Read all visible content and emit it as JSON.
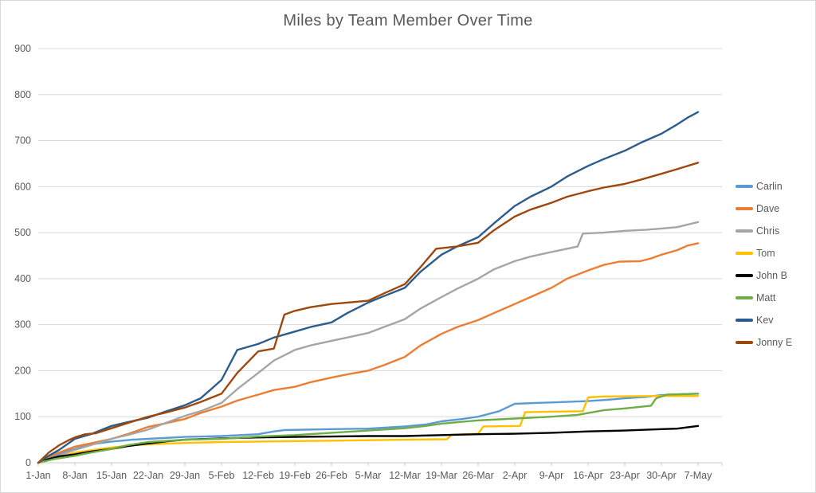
{
  "title": "Miles by Team Member Over Time",
  "chart_data": {
    "type": "line",
    "title": "Miles by Team Member Over Time",
    "xlabel": "",
    "ylabel": "",
    "x_unit": "days since 1-Jan, ticks weekly",
    "x_tick_labels": [
      "1-Jan",
      "8-Jan",
      "15-Jan",
      "22-Jan",
      "29-Jan",
      "5-Feb",
      "12-Feb",
      "19-Feb",
      "26-Feb",
      "5-Mar",
      "12-Mar",
      "19-Mar",
      "26-Mar",
      "2-Apr",
      "9-Apr",
      "16-Apr",
      "23-Apr",
      "30-Apr",
      "7-May"
    ],
    "x_tick_days": [
      0,
      7,
      14,
      21,
      28,
      35,
      42,
      49,
      56,
      63,
      70,
      77,
      84,
      91,
      98,
      105,
      112,
      119,
      126
    ],
    "ylim": [
      0,
      900
    ],
    "y_ticks": [
      0,
      100,
      200,
      300,
      400,
      500,
      600,
      700,
      800,
      900
    ],
    "grid": true,
    "legend_position": "right",
    "styles": {
      "grid_color": "#D9D9D9",
      "axis_color": "#C9C9C9",
      "label_color": "#595959",
      "title_color": "#595959"
    },
    "series": [
      {
        "name": "Carlin",
        "color": "#5B9BD5",
        "final_value": 150,
        "points": [
          [
            0,
            0
          ],
          [
            2,
            12
          ],
          [
            4,
            20
          ],
          [
            7,
            30
          ],
          [
            10,
            40
          ],
          [
            14,
            46
          ],
          [
            18,
            50
          ],
          [
            21,
            52
          ],
          [
            28,
            56
          ],
          [
            35,
            58
          ],
          [
            42,
            62
          ],
          [
            45,
            68
          ],
          [
            47,
            71
          ],
          [
            56,
            73
          ],
          [
            63,
            74
          ],
          [
            70,
            79
          ],
          [
            74,
            83
          ],
          [
            77,
            90
          ],
          [
            81,
            95
          ],
          [
            84,
            100
          ],
          [
            88,
            112
          ],
          [
            91,
            128
          ],
          [
            95,
            130
          ],
          [
            98,
            131
          ],
          [
            105,
            134
          ],
          [
            109,
            137
          ],
          [
            112,
            140
          ],
          [
            116,
            143
          ],
          [
            119,
            147
          ],
          [
            123,
            149
          ],
          [
            126,
            150
          ]
        ]
      },
      {
        "name": "Dave",
        "color": "#ED7D31",
        "final_value": 477,
        "points": [
          [
            0,
            0
          ],
          [
            3,
            18
          ],
          [
            7,
            35
          ],
          [
            10,
            42
          ],
          [
            14,
            52
          ],
          [
            17,
            62
          ],
          [
            21,
            78
          ],
          [
            24,
            85
          ],
          [
            28,
            95
          ],
          [
            31,
            108
          ],
          [
            35,
            122
          ],
          [
            38,
            135
          ],
          [
            42,
            148
          ],
          [
            45,
            158
          ],
          [
            49,
            165
          ],
          [
            52,
            175
          ],
          [
            56,
            185
          ],
          [
            59,
            192
          ],
          [
            63,
            200
          ],
          [
            66,
            212
          ],
          [
            70,
            230
          ],
          [
            73,
            255
          ],
          [
            77,
            280
          ],
          [
            80,
            295
          ],
          [
            84,
            310
          ],
          [
            87,
            325
          ],
          [
            91,
            345
          ],
          [
            94,
            360
          ],
          [
            98,
            380
          ],
          [
            101,
            400
          ],
          [
            105,
            418
          ],
          [
            108,
            430
          ],
          [
            111,
            437
          ],
          [
            115,
            438
          ],
          [
            117,
            444
          ],
          [
            119,
            452
          ],
          [
            122,
            462
          ],
          [
            124,
            472
          ],
          [
            126,
            477
          ]
        ]
      },
      {
        "name": "Chris",
        "color": "#A5A5A5",
        "final_value": 523,
        "points": [
          [
            0,
            0
          ],
          [
            3,
            12
          ],
          [
            7,
            28
          ],
          [
            10,
            38
          ],
          [
            14,
            52
          ],
          [
            17,
            60
          ],
          [
            21,
            72
          ],
          [
            24,
            85
          ],
          [
            28,
            102
          ],
          [
            31,
            112
          ],
          [
            35,
            130
          ],
          [
            38,
            160
          ],
          [
            42,
            195
          ],
          [
            45,
            222
          ],
          [
            49,
            245
          ],
          [
            52,
            255
          ],
          [
            56,
            265
          ],
          [
            59,
            272
          ],
          [
            63,
            282
          ],
          [
            66,
            295
          ],
          [
            70,
            312
          ],
          [
            73,
            335
          ],
          [
            77,
            360
          ],
          [
            80,
            378
          ],
          [
            84,
            400
          ],
          [
            87,
            420
          ],
          [
            91,
            438
          ],
          [
            94,
            448
          ],
          [
            98,
            458
          ],
          [
            101,
            465
          ],
          [
            103,
            470
          ],
          [
            104,
            498
          ],
          [
            108,
            500
          ],
          [
            112,
            504
          ],
          [
            116,
            506
          ],
          [
            119,
            509
          ],
          [
            122,
            512
          ],
          [
            126,
            523
          ]
        ]
      },
      {
        "name": "Tom",
        "color": "#FFC000",
        "final_value": 145,
        "points": [
          [
            0,
            0
          ],
          [
            3,
            10
          ],
          [
            7,
            22
          ],
          [
            10,
            27
          ],
          [
            14,
            33
          ],
          [
            18,
            38
          ],
          [
            21,
            40
          ],
          [
            28,
            43
          ],
          [
            35,
            45
          ],
          [
            42,
            46
          ],
          [
            49,
            47
          ],
          [
            56,
            48
          ],
          [
            63,
            49
          ],
          [
            70,
            50
          ],
          [
            78,
            51
          ],
          [
            79,
            61
          ],
          [
            84,
            63
          ],
          [
            85,
            79
          ],
          [
            92,
            80
          ],
          [
            93,
            110
          ],
          [
            104,
            112
          ],
          [
            105,
            142
          ],
          [
            108,
            144
          ],
          [
            119,
            145
          ],
          [
            126,
            145
          ]
        ]
      },
      {
        "name": "John B",
        "color": "#000000",
        "final_value": 80,
        "points": [
          [
            0,
            0
          ],
          [
            2,
            8
          ],
          [
            4,
            14
          ],
          [
            7,
            18
          ],
          [
            10,
            24
          ],
          [
            14,
            30
          ],
          [
            17,
            36
          ],
          [
            21,
            42
          ],
          [
            25,
            47
          ],
          [
            28,
            50
          ],
          [
            35,
            53
          ],
          [
            42,
            55
          ],
          [
            49,
            56
          ],
          [
            56,
            57
          ],
          [
            63,
            58
          ],
          [
            70,
            58
          ],
          [
            77,
            60
          ],
          [
            84,
            62
          ],
          [
            91,
            63
          ],
          [
            98,
            65
          ],
          [
            105,
            68
          ],
          [
            112,
            70
          ],
          [
            119,
            73
          ],
          [
            122,
            74
          ],
          [
            126,
            80
          ]
        ]
      },
      {
        "name": "Matt",
        "color": "#70AD47",
        "final_value": 150,
        "points": [
          [
            0,
            0
          ],
          [
            3,
            8
          ],
          [
            7,
            15
          ],
          [
            10,
            22
          ],
          [
            14,
            30
          ],
          [
            17,
            38
          ],
          [
            21,
            45
          ],
          [
            28,
            50
          ],
          [
            35,
            52
          ],
          [
            42,
            57
          ],
          [
            49,
            60
          ],
          [
            56,
            65
          ],
          [
            63,
            70
          ],
          [
            70,
            75
          ],
          [
            74,
            80
          ],
          [
            77,
            85
          ],
          [
            81,
            89
          ],
          [
            84,
            92
          ],
          [
            91,
            96
          ],
          [
            98,
            100
          ],
          [
            103,
            104
          ],
          [
            105,
            108
          ],
          [
            108,
            114
          ],
          [
            112,
            118
          ],
          [
            117,
            124
          ],
          [
            118,
            140
          ],
          [
            120,
            148
          ],
          [
            126,
            150
          ]
        ]
      },
      {
        "name": "Kev",
        "color": "#2B5C8D",
        "final_value": 762,
        "points": [
          [
            0,
            0
          ],
          [
            2,
            15
          ],
          [
            4,
            28
          ],
          [
            7,
            52
          ],
          [
            10,
            62
          ],
          [
            14,
            80
          ],
          [
            17,
            88
          ],
          [
            21,
            98
          ],
          [
            24,
            110
          ],
          [
            28,
            125
          ],
          [
            31,
            140
          ],
          [
            33,
            160
          ],
          [
            35,
            180
          ],
          [
            38,
            245
          ],
          [
            42,
            258
          ],
          [
            45,
            272
          ],
          [
            49,
            285
          ],
          [
            52,
            295
          ],
          [
            56,
            305
          ],
          [
            59,
            325
          ],
          [
            63,
            348
          ],
          [
            66,
            362
          ],
          [
            70,
            380
          ],
          [
            73,
            415
          ],
          [
            77,
            452
          ],
          [
            80,
            470
          ],
          [
            84,
            490
          ],
          [
            87,
            520
          ],
          [
            91,
            558
          ],
          [
            94,
            578
          ],
          [
            98,
            600
          ],
          [
            101,
            622
          ],
          [
            105,
            645
          ],
          [
            108,
            660
          ],
          [
            112,
            678
          ],
          [
            115,
            695
          ],
          [
            119,
            715
          ],
          [
            122,
            735
          ],
          [
            124,
            750
          ],
          [
            126,
            762
          ]
        ]
      },
      {
        "name": "Jonny E",
        "color": "#9E480E",
        "final_value": 652,
        "points": [
          [
            0,
            0
          ],
          [
            2,
            22
          ],
          [
            4,
            38
          ],
          [
            6,
            50
          ],
          [
            7,
            55
          ],
          [
            9,
            62
          ],
          [
            11,
            64
          ],
          [
            14,
            75
          ],
          [
            17,
            86
          ],
          [
            21,
            100
          ],
          [
            24,
            108
          ],
          [
            28,
            120
          ],
          [
            31,
            132
          ],
          [
            35,
            150
          ],
          [
            38,
            195
          ],
          [
            42,
            242
          ],
          [
            45,
            248
          ],
          [
            47,
            322
          ],
          [
            49,
            330
          ],
          [
            52,
            338
          ],
          [
            56,
            345
          ],
          [
            59,
            348
          ],
          [
            63,
            352
          ],
          [
            66,
            368
          ],
          [
            70,
            388
          ],
          [
            73,
            425
          ],
          [
            76,
            465
          ],
          [
            80,
            470
          ],
          [
            84,
            478
          ],
          [
            87,
            505
          ],
          [
            91,
            535
          ],
          [
            94,
            550
          ],
          [
            98,
            565
          ],
          [
            101,
            578
          ],
          [
            105,
            590
          ],
          [
            108,
            598
          ],
          [
            112,
            606
          ],
          [
            115,
            615
          ],
          [
            119,
            628
          ],
          [
            122,
            638
          ],
          [
            126,
            652
          ]
        ]
      }
    ]
  }
}
